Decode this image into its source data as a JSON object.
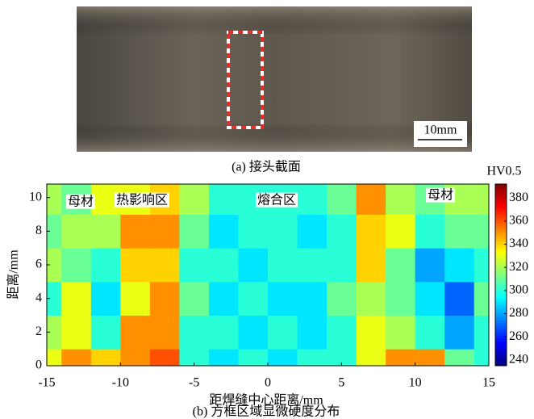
{
  "photo": {
    "scale_bar": "10mm",
    "caption": "(a) 接头截面"
  },
  "chart_data": {
    "type": "contour",
    "caption": "(b) 方框区域显微硬度分布",
    "xlabel": "距焊缝中心距离/mm",
    "ylabel": "距离/mm",
    "annotations": [
      "母材",
      "热影响区",
      "熔合区",
      "母材"
    ],
    "colorbar_label": "HV0.5",
    "colormap": "jet",
    "clim": [
      235,
      392
    ],
    "cticks": [
      240,
      260,
      280,
      300,
      320,
      340,
      360,
      380
    ],
    "xlim": [
      -15,
      15
    ],
    "xticks": [
      -15,
      -10,
      -5,
      0,
      5,
      10,
      15
    ],
    "ylim": [
      0,
      10.8
    ],
    "yticks": [
      0,
      2,
      4,
      6,
      8,
      10
    ],
    "x": [
      -15,
      -13,
      -11,
      -9,
      -7,
      -5,
      -3,
      -1,
      1,
      3,
      5,
      7,
      9,
      11,
      13,
      15
    ],
    "y": [
      0,
      2,
      4,
      6,
      8,
      10
    ],
    "values": [
      [
        330,
        350,
        340,
        350,
        360,
        300,
        290,
        300,
        290,
        300,
        300,
        330,
        350,
        350,
        310,
        300
      ],
      [
        320,
        330,
        300,
        350,
        350,
        300,
        300,
        290,
        300,
        290,
        300,
        330,
        320,
        300,
        280,
        300
      ],
      [
        300,
        330,
        290,
        330,
        350,
        310,
        290,
        300,
        290,
        290,
        310,
        320,
        310,
        290,
        270,
        310
      ],
      [
        320,
        310,
        300,
        340,
        340,
        300,
        300,
        290,
        300,
        300,
        300,
        340,
        310,
        280,
        290,
        300
      ],
      [
        310,
        320,
        320,
        350,
        350,
        310,
        290,
        300,
        300,
        290,
        300,
        340,
        330,
        300,
        310,
        310
      ],
      [
        320,
        310,
        330,
        330,
        340,
        320,
        300,
        300,
        300,
        300,
        310,
        350,
        320,
        310,
        320,
        320
      ]
    ]
  }
}
